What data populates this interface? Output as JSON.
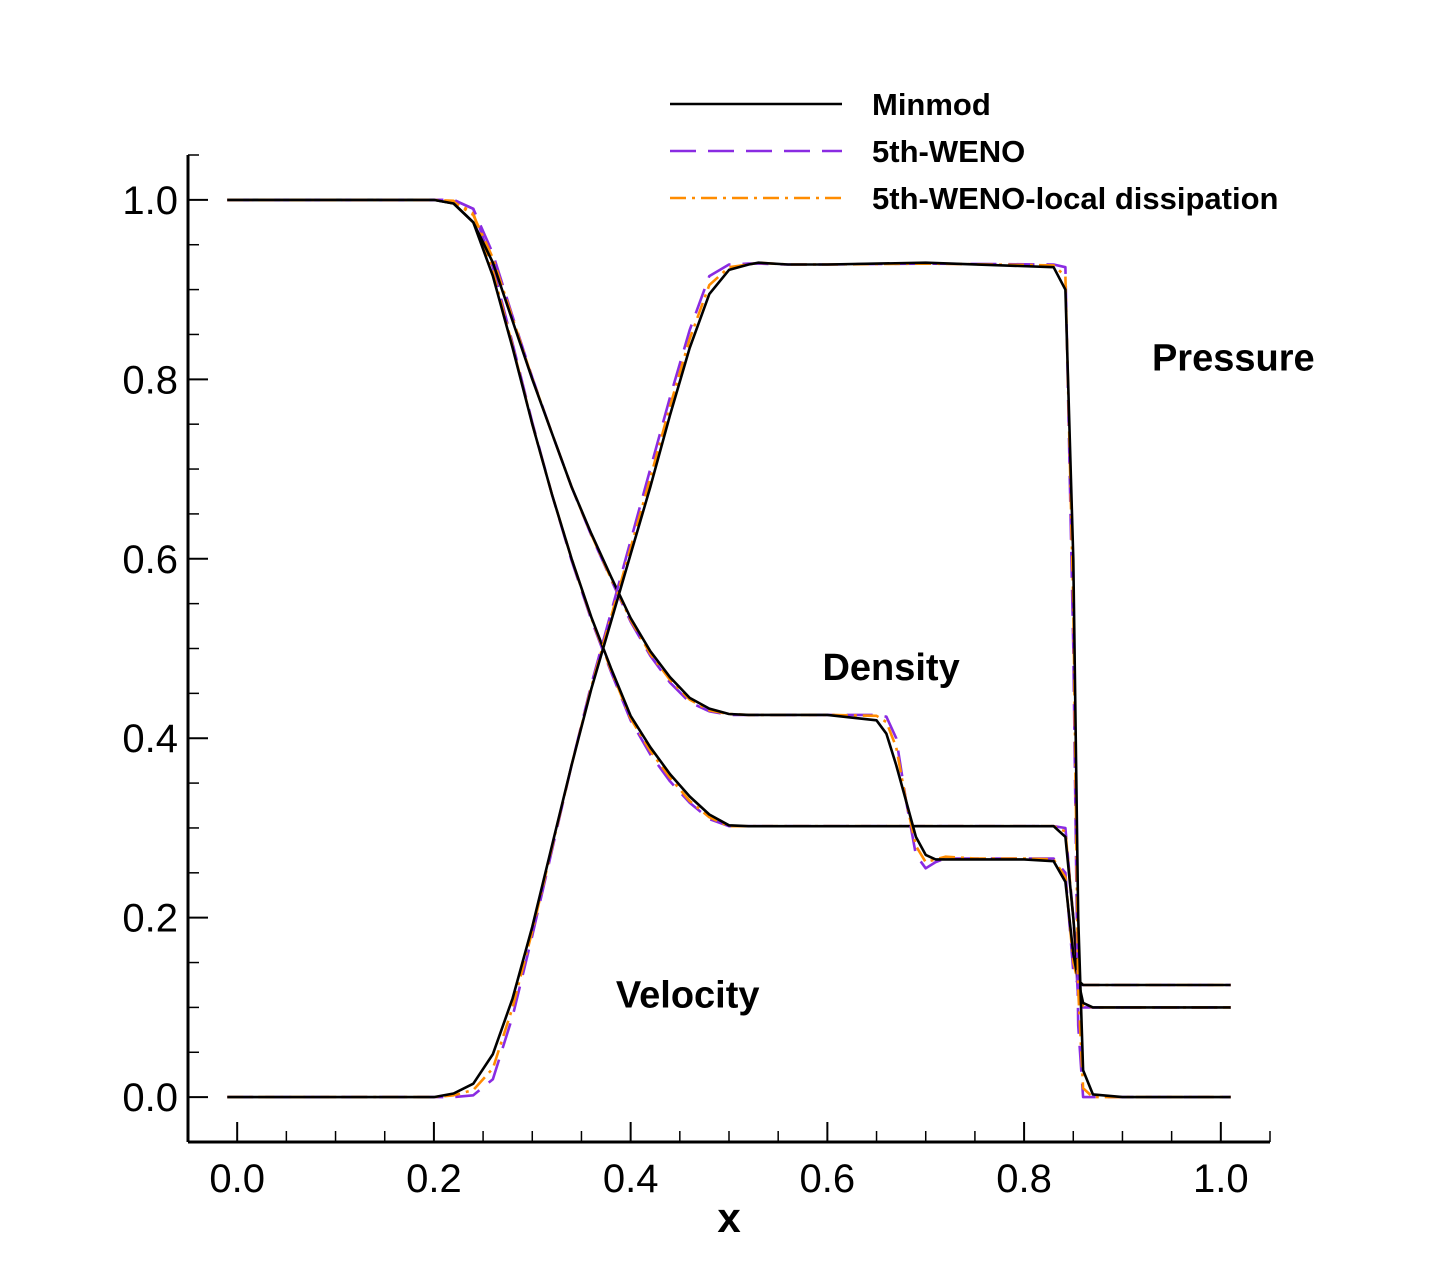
{
  "chart_data": {
    "type": "line",
    "title": "",
    "xlabel": "x",
    "ylabel": "",
    "xlim": [
      -0.05,
      1.05
    ],
    "ylim": [
      -0.05,
      1.05
    ],
    "xticks": [
      "0.0",
      "0.2",
      "0.4",
      "0.6",
      "0.8",
      "1.0"
    ],
    "yticks": [
      "0.0",
      "0.2",
      "0.4",
      "0.6",
      "0.8",
      "1.0"
    ],
    "grid": false,
    "legend_position": "top-right",
    "legend": [
      {
        "name": "Minmod",
        "color": "#000000",
        "style": "solid"
      },
      {
        "name": "5th-WENO",
        "color": "#8a2be2",
        "style": "dashed"
      },
      {
        "name": "5th-WENO-local dissipation",
        "color": "#ff8c00",
        "style": "dashdot"
      }
    ],
    "annotations": [
      {
        "text": "Pressure",
        "x": 0.93,
        "y": 0.81
      },
      {
        "text": "Density",
        "x": 0.595,
        "y": 0.465
      },
      {
        "text": "Velocity",
        "x": 0.385,
        "y": 0.1
      }
    ],
    "curves": {
      "Pressure": {
        "x": [
          -0.01,
          0.2,
          0.22,
          0.24,
          0.26,
          0.28,
          0.3,
          0.32,
          0.34,
          0.36,
          0.38,
          0.4,
          0.42,
          0.44,
          0.46,
          0.48,
          0.5,
          0.52,
          0.6,
          0.83,
          0.842,
          0.85,
          0.855,
          0.86,
          0.87,
          0.9,
          1.01
        ],
        "minmod": [
          1.0,
          1.0,
          0.996,
          0.975,
          0.915,
          0.835,
          0.75,
          0.672,
          0.6,
          0.535,
          0.478,
          0.425,
          0.39,
          0.36,
          0.335,
          0.315,
          0.303,
          0.302,
          0.302,
          0.302,
          0.29,
          0.2,
          0.13,
          0.105,
          0.1,
          0.1,
          0.1
        ],
        "weno": [
          1.0,
          1.0,
          1.0,
          0.99,
          0.925,
          0.84,
          0.752,
          0.672,
          0.598,
          0.532,
          0.474,
          0.42,
          0.382,
          0.352,
          0.328,
          0.31,
          0.302,
          0.302,
          0.302,
          0.302,
          0.3,
          0.2,
          0.11,
          0.1,
          0.1,
          0.1,
          0.1
        ],
        "local": [
          1.0,
          1.0,
          0.999,
          0.985,
          0.92,
          0.837,
          0.75,
          0.672,
          0.6,
          0.534,
          0.476,
          0.422,
          0.386,
          0.356,
          0.33,
          0.312,
          0.302,
          0.302,
          0.302,
          0.302,
          0.296,
          0.2,
          0.12,
          0.102,
          0.1,
          0.1,
          0.1
        ]
      },
      "Density": {
        "x": [
          -0.01,
          0.2,
          0.22,
          0.24,
          0.26,
          0.28,
          0.3,
          0.32,
          0.34,
          0.36,
          0.38,
          0.4,
          0.42,
          0.44,
          0.46,
          0.48,
          0.5,
          0.52,
          0.6,
          0.65,
          0.66,
          0.67,
          0.68,
          0.69,
          0.7,
          0.71,
          0.72,
          0.75,
          0.8,
          0.83,
          0.842,
          0.85,
          0.855,
          0.86,
          0.87,
          0.9,
          1.01
        ],
        "minmod": [
          1.0,
          1.0,
          0.996,
          0.975,
          0.93,
          0.865,
          0.8,
          0.74,
          0.68,
          0.628,
          0.58,
          0.534,
          0.497,
          0.468,
          0.445,
          0.433,
          0.427,
          0.426,
          0.426,
          0.42,
          0.405,
          0.37,
          0.33,
          0.29,
          0.27,
          0.265,
          0.265,
          0.265,
          0.265,
          0.263,
          0.24,
          0.16,
          0.13,
          0.125,
          0.125,
          0.125,
          0.125
        ],
        "weno": [
          1.0,
          1.0,
          1.0,
          0.99,
          0.94,
          0.87,
          0.802,
          0.74,
          0.68,
          0.626,
          0.577,
          0.53,
          0.492,
          0.462,
          0.44,
          0.43,
          0.426,
          0.426,
          0.426,
          0.426,
          0.424,
          0.4,
          0.33,
          0.27,
          0.255,
          0.262,
          0.266,
          0.266,
          0.266,
          0.266,
          0.25,
          0.14,
          0.125,
          0.125,
          0.125,
          0.125,
          0.125
        ],
        "local": [
          1.0,
          1.0,
          0.998,
          0.983,
          0.935,
          0.868,
          0.801,
          0.74,
          0.68,
          0.627,
          0.578,
          0.532,
          0.494,
          0.465,
          0.443,
          0.431,
          0.427,
          0.426,
          0.426,
          0.425,
          0.418,
          0.39,
          0.33,
          0.28,
          0.262,
          0.265,
          0.268,
          0.266,
          0.266,
          0.265,
          0.245,
          0.15,
          0.128,
          0.125,
          0.125,
          0.125,
          0.125
        ]
      },
      "Velocity": {
        "x": [
          -0.01,
          0.2,
          0.22,
          0.24,
          0.26,
          0.28,
          0.3,
          0.32,
          0.34,
          0.36,
          0.38,
          0.4,
          0.42,
          0.44,
          0.46,
          0.48,
          0.5,
          0.52,
          0.53,
          0.56,
          0.6,
          0.7,
          0.83,
          0.842,
          0.85,
          0.855,
          0.86,
          0.87,
          0.9,
          1.01
        ],
        "minmod": [
          0.0,
          0.0,
          0.004,
          0.015,
          0.048,
          0.11,
          0.19,
          0.28,
          0.37,
          0.455,
          0.53,
          0.605,
          0.68,
          0.76,
          0.835,
          0.895,
          0.922,
          0.928,
          0.93,
          0.928,
          0.928,
          0.93,
          0.925,
          0.9,
          0.6,
          0.2,
          0.03,
          0.003,
          0.0,
          0.0
        ],
        "weno": [
          0.0,
          0.0,
          0.0,
          0.002,
          0.02,
          0.09,
          0.18,
          0.275,
          0.37,
          0.46,
          0.54,
          0.62,
          0.7,
          0.78,
          0.855,
          0.915,
          0.928,
          0.929,
          0.929,
          0.928,
          0.928,
          0.929,
          0.928,
          0.925,
          0.5,
          0.08,
          0.0,
          0.0,
          0.0,
          0.0
        ],
        "local": [
          0.0,
          0.0,
          0.002,
          0.008,
          0.032,
          0.1,
          0.185,
          0.278,
          0.37,
          0.457,
          0.535,
          0.612,
          0.69,
          0.77,
          0.845,
          0.905,
          0.925,
          0.928,
          0.93,
          0.928,
          0.928,
          0.929,
          0.927,
          0.915,
          0.55,
          0.12,
          0.01,
          0.0,
          0.0,
          0.0
        ]
      }
    }
  }
}
